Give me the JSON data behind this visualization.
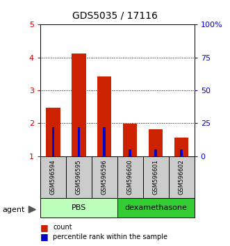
{
  "title": "GDS5035 / 17116",
  "samples": [
    "GSM596594",
    "GSM596595",
    "GSM596596",
    "GSM596600",
    "GSM596601",
    "GSM596602"
  ],
  "count_values": [
    2.47,
    4.12,
    3.42,
    1.99,
    1.82,
    1.57
  ],
  "blue_pct": [
    22,
    22,
    22,
    5,
    5,
    5
  ],
  "groups": [
    {
      "label": "PBS",
      "start": 0,
      "end": 3,
      "color": "#bbffbb"
    },
    {
      "label": "dexamethasone",
      "start": 3,
      "end": 6,
      "color": "#33cc33"
    }
  ],
  "ylim": [
    1.0,
    5.0
  ],
  "left_axis_color": "#cc0000",
  "right_axis_color": "#0000cc",
  "bar_color_red": "#cc2200",
  "bar_color_blue": "#0000cc",
  "bg_color": "#ffffff",
  "sample_bg_color": "#cccccc",
  "agent_label": "agent"
}
